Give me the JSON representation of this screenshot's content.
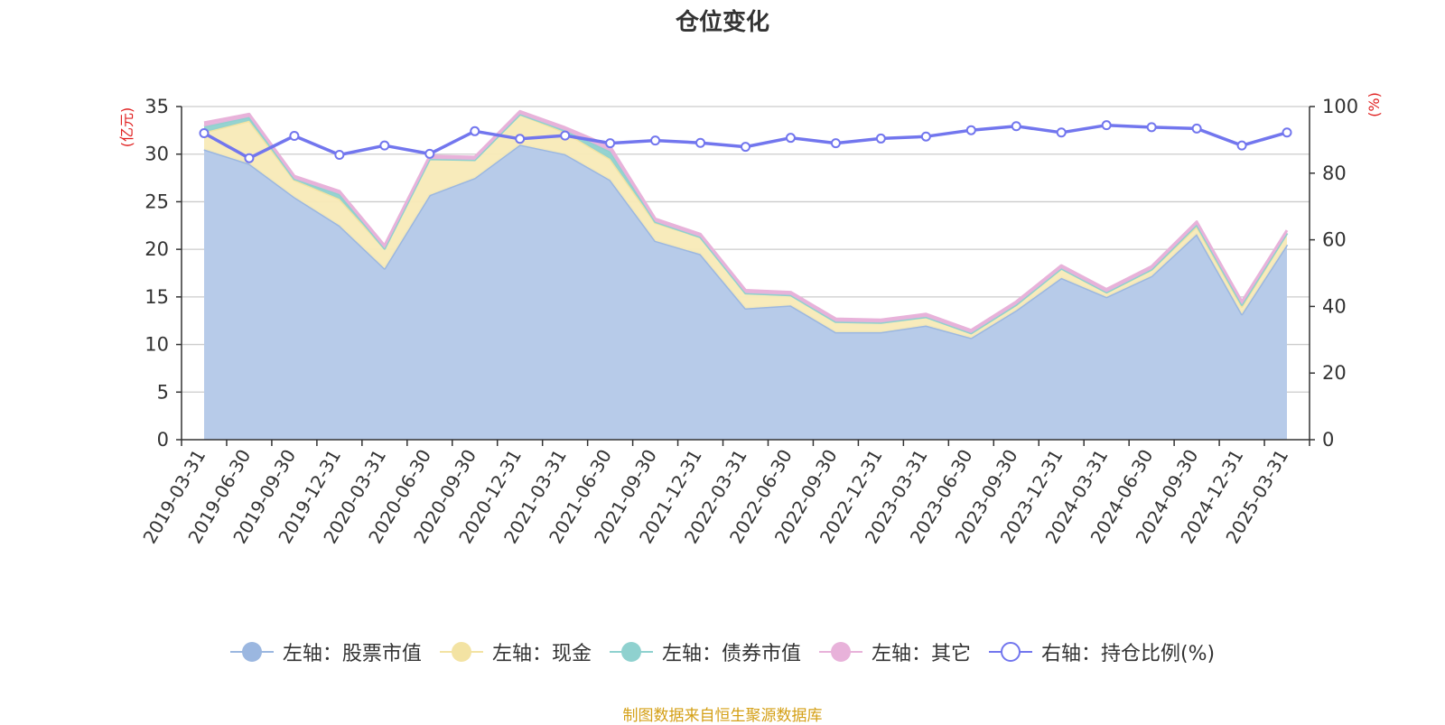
{
  "chart_data": {
    "type": "area",
    "title": "仓位变化",
    "categories": [
      "2019-03-31",
      "2019-06-30",
      "2019-09-30",
      "2019-12-31",
      "2020-03-31",
      "2020-06-30",
      "2020-09-30",
      "2020-12-31",
      "2021-03-31",
      "2021-06-30",
      "2021-09-30",
      "2021-12-31",
      "2022-03-31",
      "2022-06-30",
      "2022-09-30",
      "2022-12-31",
      "2023-03-31",
      "2023-06-30",
      "2023-09-30",
      "2023-12-31",
      "2024-03-31",
      "2024-06-30",
      "2024-09-30",
      "2024-12-31",
      "2025-03-31"
    ],
    "left_axis": {
      "label": "(亿元)",
      "ylim": [
        0,
        35
      ],
      "ticks": [
        0,
        5,
        10,
        15,
        20,
        25,
        30,
        35
      ]
    },
    "right_axis": {
      "label": "(%)",
      "ylim": [
        0,
        100
      ],
      "ticks": [
        0,
        20,
        40,
        60,
        80,
        100
      ]
    },
    "stacked": true,
    "grid": true,
    "legend_position": "bottom",
    "series": [
      {
        "name": "左轴：股票市值",
        "axis": "left",
        "kind": "area",
        "color": "#9bb7e0",
        "fill": "#b7cbe9",
        "values": [
          30.5,
          29.0,
          25.5,
          22.5,
          18.0,
          25.7,
          27.5,
          31.0,
          30.0,
          27.3,
          20.9,
          19.5,
          13.8,
          14.1,
          11.3,
          11.3,
          12.0,
          10.7,
          13.6,
          17.0,
          15.0,
          17.2,
          21.6,
          13.2,
          20.5
        ]
      },
      {
        "name": "左轴：现金",
        "axis": "left",
        "kind": "area",
        "color": "#f3e3a3",
        "fill": "#f8eab7",
        "values": [
          1.8,
          4.5,
          1.8,
          2.8,
          2.1,
          3.8,
          1.9,
          3.2,
          2.3,
          2.2,
          1.9,
          1.8,
          1.6,
          1.1,
          1.1,
          1.0,
          0.9,
          0.5,
          0.6,
          1.0,
          0.5,
          0.7,
          0.8,
          0.8,
          1.2
        ]
      },
      {
        "name": "左轴：债券市值",
        "axis": "left",
        "kind": "area",
        "color": "#8fd1cf",
        "fill": "#8fd1cf",
        "values": [
          0.6,
          0.4,
          0.1,
          0.5,
          0.0,
          0.0,
          0.0,
          0.0,
          0.2,
          0.8,
          0.1,
          0.0,
          0.0,
          0.0,
          0.0,
          0.0,
          0.0,
          0.0,
          0.0,
          0.0,
          0.0,
          0.0,
          0.2,
          0.2,
          0.0
        ]
      },
      {
        "name": "左轴：其它",
        "axis": "left",
        "kind": "area",
        "color": "#e8b2da",
        "fill": "#e8b2da",
        "values": [
          0.4,
          0.3,
          0.3,
          0.3,
          0.3,
          0.3,
          0.3,
          0.3,
          0.3,
          0.5,
          0.3,
          0.3,
          0.3,
          0.3,
          0.3,
          0.3,
          0.3,
          0.3,
          0.3,
          0.3,
          0.3,
          0.3,
          0.3,
          0.3,
          0.3
        ]
      },
      {
        "name": "右轴：持仓比例(%)",
        "axis": "right",
        "kind": "line",
        "color": "#7276ee",
        "values": [
          92.0,
          84.5,
          91.2,
          85.5,
          88.3,
          85.8,
          92.6,
          90.3,
          91.3,
          89.0,
          89.8,
          89.1,
          87.9,
          90.6,
          89.0,
          90.4,
          91.0,
          92.9,
          94.1,
          92.2,
          94.4,
          93.8,
          93.4,
          88.3,
          92.2
        ]
      }
    ]
  },
  "source_note": "制图数据来自恒生聚源数据库"
}
